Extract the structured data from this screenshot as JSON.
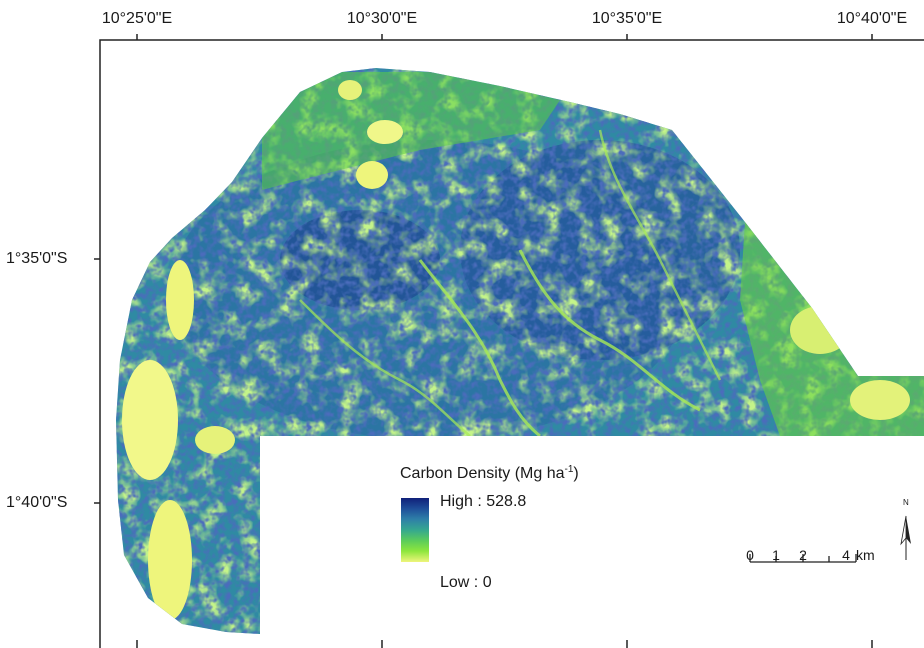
{
  "top_labels": [
    "10°25'0\"E",
    "10°30'0\"E",
    "10°35'0\"E",
    "10°40'0\"E"
  ],
  "left_labels": [
    "1°35'0\"S",
    "1°40'0\"S"
  ],
  "legend": {
    "title": "Carbon Density (Mg ha",
    "title_sup": "-1",
    "title_close": ")",
    "high_label": "High : 528.8",
    "low_label": "Low : 0",
    "high_value": 528.8,
    "low_value": 0,
    "colors": [
      "#10207a",
      "#1f4f9a",
      "#2e7fa8",
      "#35a88f",
      "#5ccd5a",
      "#8ee63d",
      "#eef57c"
    ]
  },
  "scalebar": {
    "ticks": [
      "0",
      "1",
      "2",
      "4"
    ],
    "unit": "km"
  },
  "north_arrow": {
    "letter": "N"
  }
}
